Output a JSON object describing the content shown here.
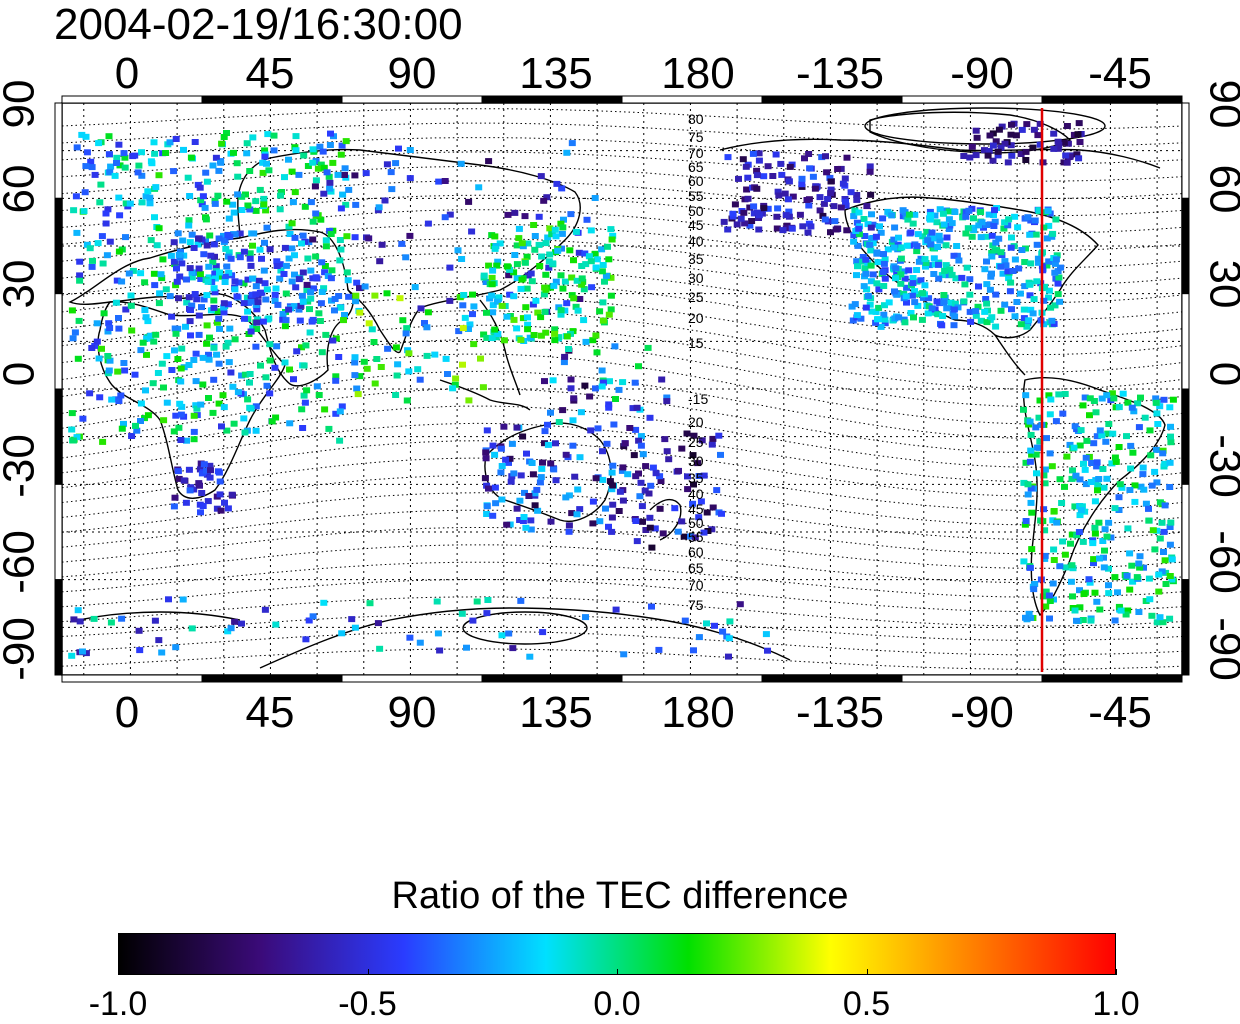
{
  "title": "2004-02-19/16:30:00",
  "map": {
    "projection": "cylindrical",
    "lon_ticks_top": [
      "0",
      "45",
      "90",
      "135",
      "180",
      "-135",
      "-90",
      "-45"
    ],
    "lon_ticks_bottom": [
      "0",
      "45",
      "90",
      "135",
      "180",
      "-135",
      "-90",
      "-45"
    ],
    "lat_ticks_left": [
      "90",
      "60",
      "30",
      "0",
      "-30",
      "-60",
      "-90"
    ],
    "lat_ticks_right": [
      "90",
      "60",
      "30",
      "0",
      "-30",
      "-60",
      "-90"
    ],
    "grid": true,
    "contour_labels_north": [
      "80",
      "75",
      "70",
      "65",
      "60",
      "55",
      "50",
      "45",
      "40",
      "35",
      "30",
      "25",
      "20",
      "15"
    ],
    "contour_labels_south": [
      "-15",
      "20",
      "25",
      "30",
      "35",
      "40",
      "45",
      "50",
      "55",
      "60",
      "65",
      "70",
      "75"
    ],
    "terminator_line_lon": -67,
    "terminator_color": "#e00000"
  },
  "colorbar": {
    "title": "Ratio of the TEC difference",
    "range": [
      -1.0,
      1.0
    ],
    "tick_labels": [
      "-1.0",
      "-0.5",
      "0.0",
      "0.5",
      "1.0"
    ],
    "colors": [
      "#000000",
      "#3b0b7a",
      "#2a3cff",
      "#00e0ff",
      "#00e000",
      "#ffff00",
      "#ff8000",
      "#ff0000"
    ]
  }
}
